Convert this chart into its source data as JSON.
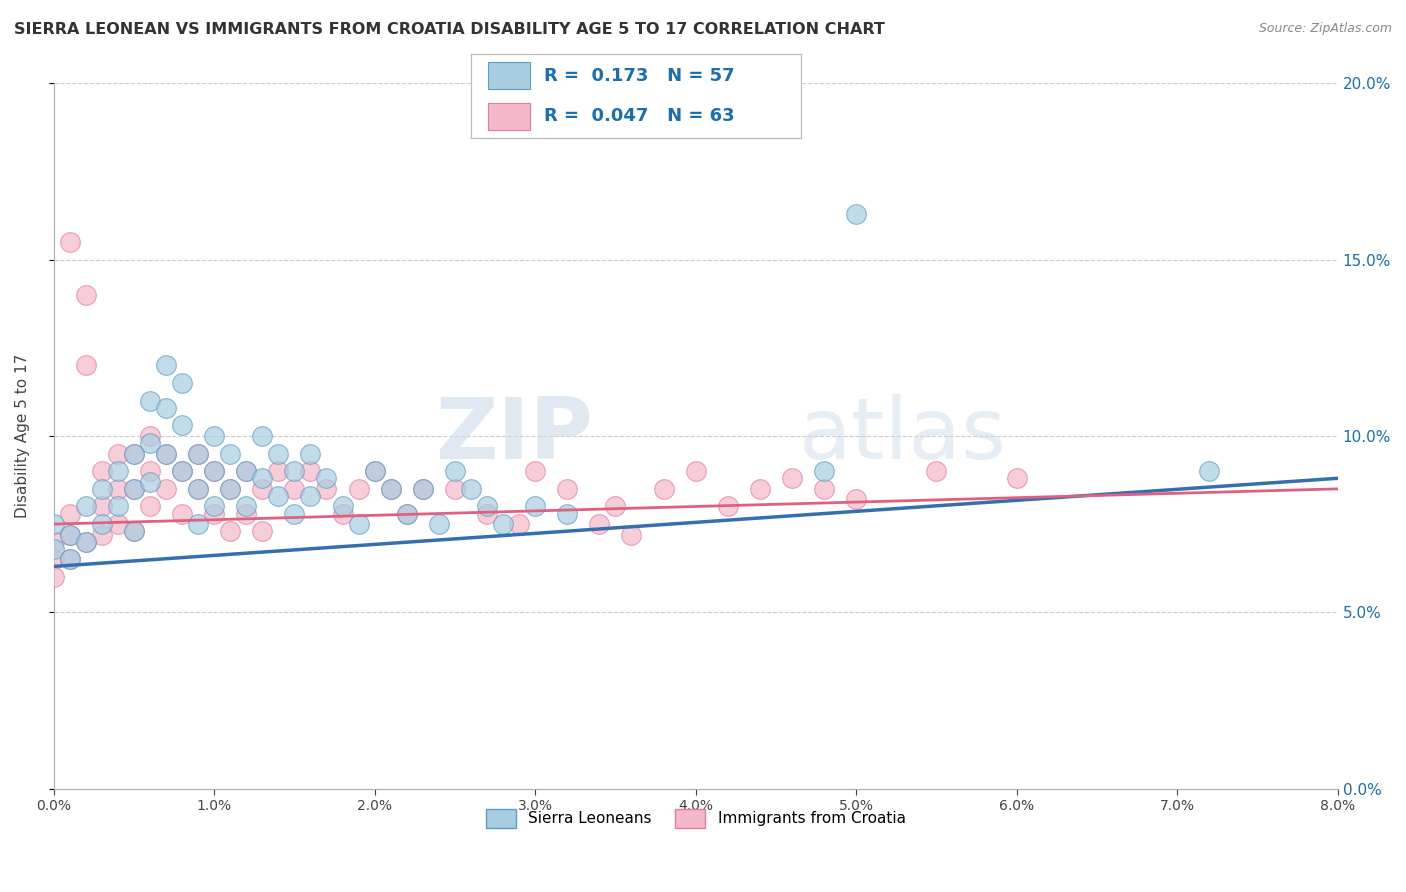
{
  "title": "SIERRA LEONEAN VS IMMIGRANTS FROM CROATIA DISABILITY AGE 5 TO 17 CORRELATION CHART",
  "source": "Source: ZipAtlas.com",
  "ylabel": "Disability Age 5 to 17",
  "xlim": [
    0.0,
    0.08
  ],
  "ylim": [
    0.0,
    0.2
  ],
  "xticks": [
    0.0,
    0.01,
    0.02,
    0.03,
    0.04,
    0.05,
    0.06,
    0.07,
    0.08
  ],
  "yticks": [
    0.0,
    0.05,
    0.1,
    0.15,
    0.2
  ],
  "ytick_labels": [
    "0.0%",
    "5.0%",
    "10.0%",
    "15.0%",
    "20.0%"
  ],
  "xtick_labels": [
    "0.0%",
    "1.0%",
    "2.0%",
    "3.0%",
    "4.0%",
    "5.0%",
    "6.0%",
    "7.0%",
    "8.0%"
  ],
  "watermark_zip": "ZIP",
  "watermark_atlas": "atlas",
  "legend_text_1": "R =  0.173   N = 57",
  "legend_text_2": "R =  0.047   N = 63",
  "blue_color": "#a8cce0",
  "pink_color": "#f4b8c8",
  "blue_edge_color": "#5b9dc9",
  "pink_edge_color": "#e87aa0",
  "blue_line_color": "#3470b0",
  "pink_line_color": "#e06080",
  "legend_label_blue": "Sierra Leoneans",
  "legend_label_pink": "Immigrants from Croatia",
  "blue_scatter_x": [
    0.0,
    0.0,
    0.001,
    0.001,
    0.002,
    0.002,
    0.003,
    0.003,
    0.004,
    0.004,
    0.005,
    0.005,
    0.005,
    0.006,
    0.006,
    0.006,
    0.007,
    0.007,
    0.007,
    0.008,
    0.008,
    0.008,
    0.009,
    0.009,
    0.009,
    0.01,
    0.01,
    0.01,
    0.011,
    0.011,
    0.012,
    0.012,
    0.013,
    0.013,
    0.014,
    0.014,
    0.015,
    0.015,
    0.016,
    0.016,
    0.017,
    0.018,
    0.019,
    0.02,
    0.021,
    0.022,
    0.023,
    0.024,
    0.025,
    0.026,
    0.027,
    0.028,
    0.03,
    0.032,
    0.048,
    0.05,
    0.072
  ],
  "blue_scatter_y": [
    0.075,
    0.068,
    0.072,
    0.065,
    0.08,
    0.07,
    0.085,
    0.075,
    0.09,
    0.08,
    0.095,
    0.085,
    0.073,
    0.11,
    0.098,
    0.087,
    0.12,
    0.108,
    0.095,
    0.115,
    0.103,
    0.09,
    0.095,
    0.085,
    0.075,
    0.1,
    0.09,
    0.08,
    0.095,
    0.085,
    0.09,
    0.08,
    0.1,
    0.088,
    0.095,
    0.083,
    0.09,
    0.078,
    0.095,
    0.083,
    0.088,
    0.08,
    0.075,
    0.09,
    0.085,
    0.078,
    0.085,
    0.075,
    0.09,
    0.085,
    0.08,
    0.075,
    0.08,
    0.078,
    0.09,
    0.163,
    0.09
  ],
  "pink_scatter_x": [
    0.0,
    0.0,
    0.0,
    0.001,
    0.001,
    0.001,
    0.001,
    0.002,
    0.002,
    0.002,
    0.003,
    0.003,
    0.003,
    0.004,
    0.004,
    0.004,
    0.005,
    0.005,
    0.005,
    0.006,
    0.006,
    0.006,
    0.007,
    0.007,
    0.008,
    0.008,
    0.009,
    0.009,
    0.01,
    0.01,
    0.011,
    0.011,
    0.012,
    0.012,
    0.013,
    0.013,
    0.014,
    0.015,
    0.016,
    0.017,
    0.018,
    0.019,
    0.02,
    0.021,
    0.022,
    0.023,
    0.025,
    0.027,
    0.029,
    0.03,
    0.032,
    0.034,
    0.035,
    0.036,
    0.038,
    0.04,
    0.042,
    0.044,
    0.046,
    0.048,
    0.05,
    0.055,
    0.06
  ],
  "pink_scatter_y": [
    0.07,
    0.065,
    0.06,
    0.072,
    0.065,
    0.078,
    0.155,
    0.14,
    0.12,
    0.07,
    0.09,
    0.08,
    0.072,
    0.095,
    0.085,
    0.075,
    0.095,
    0.085,
    0.073,
    0.1,
    0.09,
    0.08,
    0.095,
    0.085,
    0.09,
    0.078,
    0.095,
    0.085,
    0.09,
    0.078,
    0.085,
    0.073,
    0.09,
    0.078,
    0.085,
    0.073,
    0.09,
    0.085,
    0.09,
    0.085,
    0.078,
    0.085,
    0.09,
    0.085,
    0.078,
    0.085,
    0.085,
    0.078,
    0.075,
    0.09,
    0.085,
    0.075,
    0.08,
    0.072,
    0.085,
    0.09,
    0.08,
    0.085,
    0.088,
    0.085,
    0.082,
    0.09,
    0.088
  ]
}
